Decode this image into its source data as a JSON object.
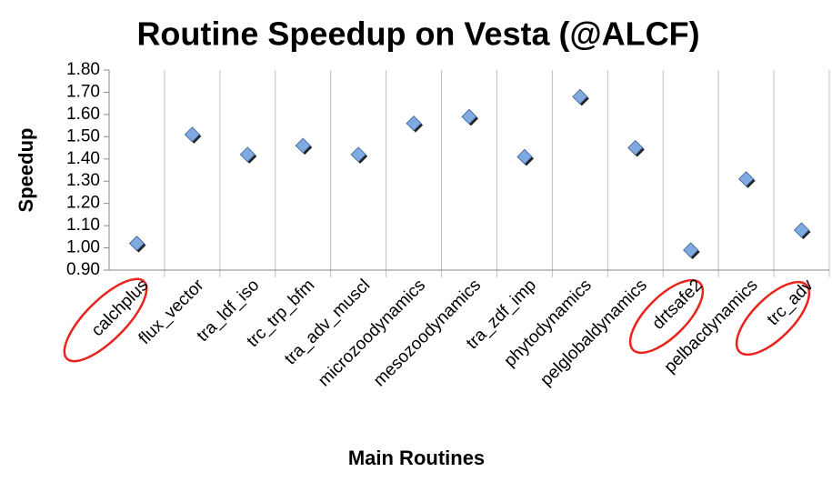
{
  "chart_data": {
    "type": "scatter",
    "title": "Routine Speedup on Vesta (@ALCF)",
    "xlabel": "Main Routines",
    "ylabel": "Speedup",
    "categories": [
      "calchplus",
      "flux_vector",
      "tra_ldf_iso",
      "trc_trp_bfm",
      "tra_adv_muscl",
      "microzoodynamics",
      "mesozoodynamics",
      "tra_zdf_imp",
      "phytodynamics",
      "pelglobaldynamics",
      "drtsafe2",
      "pelbacdynamics",
      "trc_adv"
    ],
    "values": [
      1.02,
      1.51,
      1.42,
      1.46,
      1.42,
      1.56,
      1.59,
      1.41,
      1.68,
      1.45,
      0.99,
      1.31,
      1.08
    ],
    "color": "#7ea9e1",
    "ylim": [
      0.9,
      1.8
    ],
    "yticks": [
      {
        "value": 0.9,
        "label": "0.90"
      },
      {
        "value": 1.0,
        "label": "1.00"
      },
      {
        "value": 1.1,
        "label": "1.10"
      },
      {
        "value": 1.2,
        "label": "1.20"
      },
      {
        "value": 1.3,
        "label": "1.30"
      },
      {
        "value": 1.4,
        "label": "1.40"
      },
      {
        "value": 1.5,
        "label": "1.50"
      },
      {
        "value": 1.6,
        "label": "1.60"
      },
      {
        "value": 1.7,
        "label": "1.70"
      },
      {
        "value": 1.8,
        "label": "1.80"
      }
    ]
  }
}
